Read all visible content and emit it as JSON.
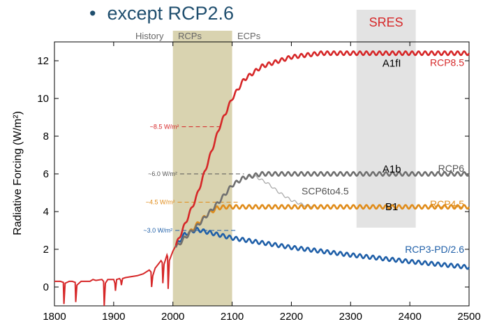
{
  "slide": {
    "bullet": "•",
    "title": "except RCP2.6"
  },
  "chart_data": {
    "type": "line",
    "ylabel": "Radiative Forcing (W/m²)",
    "xlim": [
      1800,
      2500
    ],
    "ylim": [
      -1,
      13
    ],
    "xticks": [
      1800,
      1900,
      2000,
      2100,
      2200,
      2300,
      2400,
      2500
    ],
    "yticks": [
      0,
      2,
      4,
      6,
      8,
      10,
      12
    ],
    "period_labels": {
      "history": "History",
      "rcps": "RCPs",
      "ecps": "ECPs"
    },
    "rcp_band": [
      2000,
      2100
    ],
    "sres_band": {
      "label": "SRES",
      "x": [
        2310,
        2410
      ]
    },
    "sres_labels": [
      {
        "text": "A1fI",
        "value": 11.9
      },
      {
        "text": "A1b",
        "value": 6.3
      },
      {
        "text": "B1",
        "value": 4.3
      }
    ],
    "target_annotations": [
      {
        "text": "~8.5 W/m²",
        "value": 8.5,
        "color": "#d62728"
      },
      {
        "text": "~6.0 W/m²",
        "value": 6.0,
        "color": "#555555"
      },
      {
        "text": "~4.5 W/m²",
        "value": 4.5,
        "color": "#e08c1a"
      },
      {
        "text": "~3.0 W/m²",
        "value": 3.0,
        "color": "#1f5fa8"
      }
    ],
    "series": [
      {
        "name": "RCP8.5",
        "color": "#d62728",
        "x": [
          2005,
          2020,
          2040,
          2060,
          2080,
          2100,
          2120,
          2150,
          2200,
          2250,
          2500
        ],
        "y": [
          2.2,
          3.3,
          4.8,
          6.7,
          8.6,
          10.0,
          11.0,
          11.7,
          12.2,
          12.4,
          12.4
        ]
      },
      {
        "name": "RCP6",
        "color": "#707070",
        "x": [
          2005,
          2020,
          2040,
          2060,
          2080,
          2100,
          2120,
          2150,
          2500
        ],
        "y": [
          2.1,
          2.6,
          3.2,
          3.9,
          4.6,
          5.4,
          5.8,
          6.0,
          6.0
        ]
      },
      {
        "name": "RCP4.5",
        "color": "#e08c1a",
        "x": [
          2005,
          2020,
          2040,
          2060,
          2075,
          2090,
          2110,
          2150,
          2500
        ],
        "y": [
          2.1,
          2.6,
          3.3,
          3.9,
          4.2,
          4.25,
          4.25,
          4.25,
          4.25
        ]
      },
      {
        "name": "SCP6to4.5",
        "color": "#aaaaaa",
        "x": [
          2100,
          2120,
          2140,
          2160,
          2180,
          2200,
          2220,
          2250
        ],
        "y": [
          5.4,
          5.8,
          5.85,
          5.5,
          5.0,
          4.6,
          4.35,
          4.25
        ]
      },
      {
        "name": "RCP3-PD/2.6",
        "color": "#1f5fa8",
        "x": [
          2005,
          2020,
          2040,
          2060,
          2100,
          2200,
          2300,
          2400,
          2500
        ],
        "y": [
          2.2,
          2.8,
          3.05,
          2.9,
          2.6,
          2.1,
          1.7,
          1.35,
          1.05
        ]
      }
    ],
    "history": {
      "color": "#d62728",
      "x": [
        1800,
        1810,
        1815,
        1816,
        1818,
        1825,
        1830,
        1835,
        1836,
        1838,
        1845,
        1855,
        1860,
        1865,
        1870,
        1880,
        1883,
        1884,
        1886,
        1890,
        1900,
        1902,
        1903,
        1905,
        1910,
        1912,
        1913,
        1915,
        1920,
        1930,
        1940,
        1950,
        1960,
        1963,
        1964,
        1966,
        1970,
        1975,
        1980,
        1982,
        1983,
        1985,
        1990,
        1991,
        1992,
        1994,
        2000,
        2005
      ],
      "y": [
        0.3,
        0.3,
        0.25,
        -0.9,
        0.2,
        0.3,
        0.3,
        0.25,
        -0.8,
        0.1,
        0.3,
        0.3,
        0.3,
        0.4,
        0.35,
        0.4,
        0.3,
        -1.0,
        0.2,
        0.4,
        0.4,
        0.2,
        -0.2,
        0.4,
        0.45,
        0.35,
        0.1,
        0.45,
        0.5,
        0.55,
        0.6,
        0.7,
        0.9,
        0.8,
        0.0,
        0.6,
        1.0,
        1.2,
        1.4,
        1.3,
        0.2,
        1.2,
        1.7,
        1.6,
        -0.1,
        1.4,
        1.9,
        2.2
      ]
    },
    "series_labels": [
      {
        "series": "RCP8.5",
        "text": "RCP8.5",
        "value": 11.9,
        "color": "#d62728"
      },
      {
        "series": "RCP6",
        "text": "RCP6",
        "value": 6.3,
        "color": "#555555"
      },
      {
        "series": "SCP6to4.5",
        "text": "SCP6to4.5",
        "value": 5.1,
        "color": "#555555"
      },
      {
        "series": "RCP4.5",
        "text": "RCP4.5",
        "value": 4.4,
        "color": "#e08c1a"
      },
      {
        "series": "RCP3-PD/2.6",
        "text": "RCP3-PD/2.6",
        "value": 2.0,
        "color": "#1f5fa8"
      }
    ]
  }
}
